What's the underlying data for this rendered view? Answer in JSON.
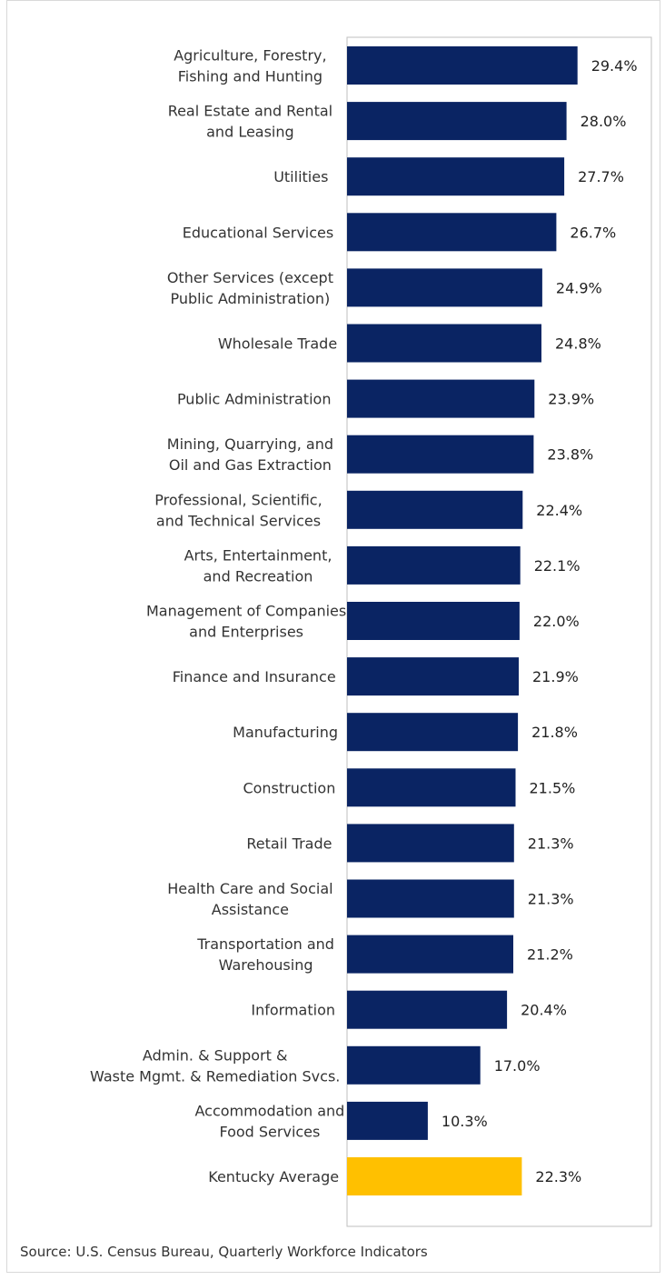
{
  "chart_data": {
    "type": "bar",
    "orientation": "horizontal",
    "categories": [
      "Agriculture, Forestry,\nFishing and Hunting",
      "Real Estate and Rental\nand Leasing",
      "Utilities",
      "Educational Services",
      "Other Services (except\nPublic Administration)",
      "Wholesale Trade",
      "Public Administration",
      "Mining, Quarrying, and\nOil and Gas Extraction",
      "Professional, Scientific,\nand Technical Services",
      "Arts, Entertainment,\nand Recreation",
      "Management of Companies\nand Enterprises",
      "Finance and Insurance",
      "Manufacturing",
      "Construction",
      "Retail Trade",
      "Health Care and Social\nAssistance",
      "Transportation and\nWarehousing",
      "Information",
      "Admin. & Support &\nWaste Mgmt. & Remediation Svcs.",
      "Accommodation and\nFood Services",
      "Kentucky Average"
    ],
    "values": [
      29.4,
      28.0,
      27.7,
      26.7,
      24.9,
      24.8,
      23.9,
      23.8,
      22.4,
      22.1,
      22.0,
      21.9,
      21.8,
      21.5,
      21.3,
      21.3,
      21.2,
      20.4,
      17.0,
      10.3,
      22.3
    ],
    "value_labels": [
      "29.4%",
      "28.0%",
      "27.7%",
      "26.7%",
      "24.9%",
      "24.8%",
      "23.9%",
      "23.8%",
      "22.4%",
      "22.1%",
      "22.0%",
      "21.9%",
      "21.8%",
      "21.5%",
      "21.3%",
      "21.3%",
      "21.2%",
      "20.4%",
      "17.0%",
      "10.3%",
      "22.3%"
    ],
    "highlight_category": "Kentucky Average",
    "colors": {
      "bar": "#0a2463",
      "highlight": "#ffc000"
    },
    "xlim": [
      0,
      35
    ],
    "grid": false,
    "legend": "none",
    "title": "",
    "xlabel": "",
    "ylabel": ""
  },
  "footer": {
    "source": "Source:  U.S. Census Bureau, Quarterly Workforce Indicators"
  }
}
